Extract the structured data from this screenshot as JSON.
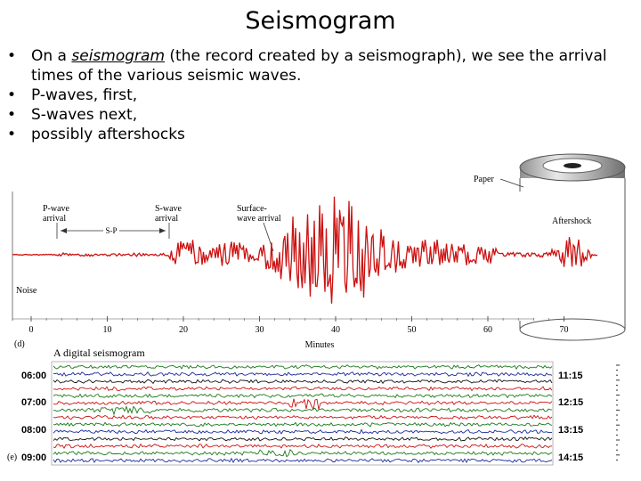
{
  "slide": {
    "title": "Seismogram",
    "bullets": [
      {
        "pre": "On a ",
        "em": "seismogram",
        "post": " (the record created by a seismograph), we see the arrival times of the various seismic waves."
      },
      {
        "text": "P-waves, first,"
      },
      {
        "text": "S-waves next,"
      },
      {
        "text": "possibly aftershocks"
      }
    ]
  },
  "figure_d": {
    "panel_label": "(d)",
    "paper_label": "Paper",
    "p_wave_label": [
      "P-wave",
      "arrival"
    ],
    "s_wave_label": [
      "S-wave",
      "arrival"
    ],
    "surface_label": [
      "Surface-",
      "wave arrival"
    ],
    "aftershock_label": "Aftershock",
    "noise_label": "Noise",
    "sp_label": "S-P",
    "axis_title": "Minutes",
    "axis_ticks": [
      "0",
      "10",
      "20",
      "30",
      "40",
      "50",
      "60",
      "70"
    ]
  },
  "figure_e": {
    "panel_label": "(e)",
    "caption": "A digital seismogram",
    "left_times": [
      "06:00",
      "07:00",
      "08:00",
      "09:00"
    ],
    "right_times": [
      "11:15",
      "12:15",
      "13:15",
      "14:15"
    ]
  },
  "colors": {
    "trace": "#cc1111",
    "paper": "#ffffff",
    "drum_metal": "#b9b9b9",
    "digital_rows": [
      "#1a7a1a",
      "#1a2a9a",
      "#111111",
      "#cc1111"
    ]
  }
}
